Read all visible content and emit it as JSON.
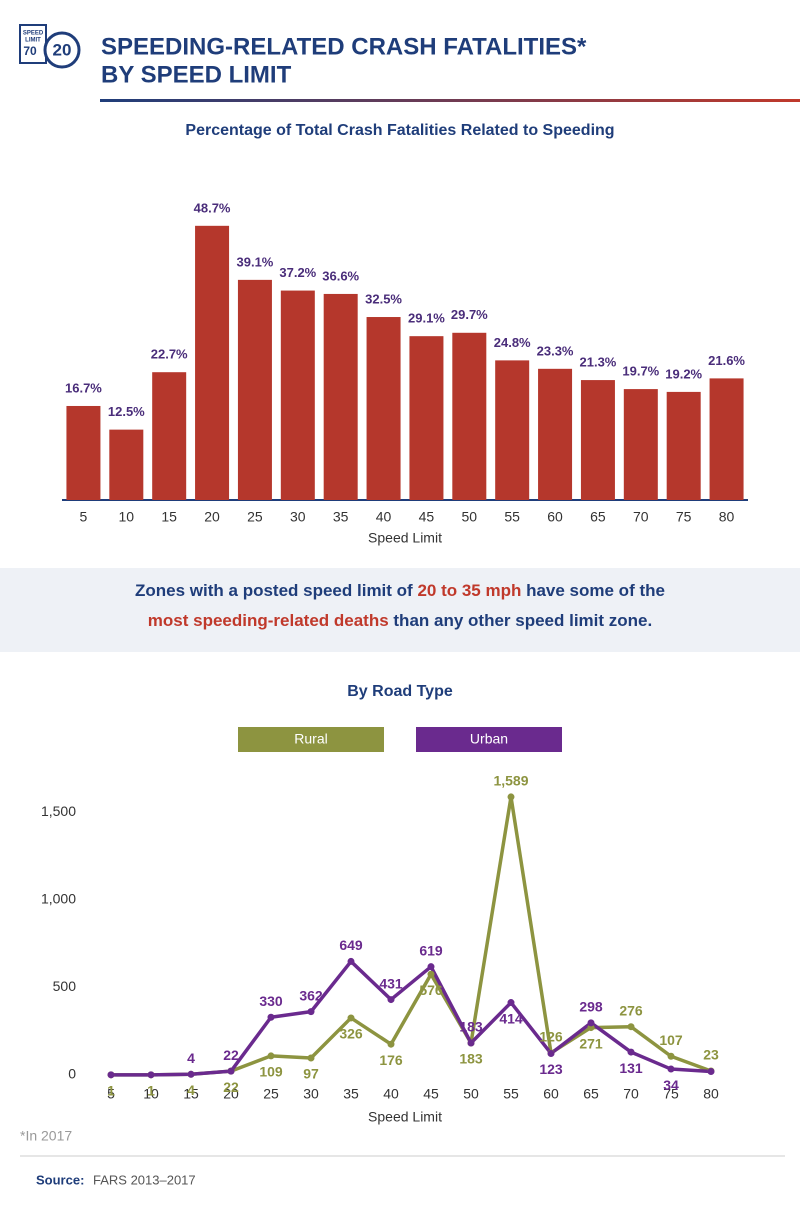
{
  "header": {
    "title": [
      "SPEEDING-RELATED CRASH FATALITIES*",
      "BY SPEED LIMIT"
    ],
    "icon": {
      "sign_top": "SPEED",
      "sign_mid": "LIMIT",
      "sign_value": "70",
      "circle_value": "20"
    }
  },
  "chart_data": [
    {
      "type": "bar",
      "title": "Percentage of Total Crash Fatalities Related to Speeding",
      "categories": [
        "5",
        "10",
        "15",
        "20",
        "25",
        "30",
        "35",
        "40",
        "45",
        "50",
        "55",
        "60",
        "65",
        "70",
        "75",
        "80"
      ],
      "values": [
        16.7,
        12.5,
        22.7,
        48.7,
        39.1,
        37.2,
        36.6,
        32.5,
        29.1,
        29.7,
        24.8,
        23.3,
        21.3,
        19.7,
        19.2,
        21.6
      ],
      "value_labels": [
        "16.7%",
        "12.5%",
        "22.7%",
        "48.7%",
        "39.1%",
        "37.2%",
        "36.6%",
        "32.5%",
        "29.1%",
        "29.7%",
        "24.8%",
        "23.3%",
        "21.3%",
        "19.7%",
        "19.2%",
        "21.6%"
      ],
      "color": "#b5372c",
      "ylim": [
        0,
        50
      ],
      "xlabel": "Speed Limit"
    },
    {
      "type": "line",
      "title": "By Road Type",
      "categories": [
        "5",
        "10",
        "15",
        "20",
        "25",
        "30",
        "35",
        "40",
        "45",
        "50",
        "55",
        "60",
        "65",
        "70",
        "75",
        "80"
      ],
      "series": [
        {
          "name": "Rural",
          "color": "#8d9440",
          "values": [
            1,
            1,
            4,
            22,
            109,
            97,
            326,
            176,
            576,
            183,
            1589,
            126,
            271,
            276,
            107,
            23
          ],
          "value_labels": [
            "1",
            "1",
            "4",
            "22",
            "109",
            "97",
            "326",
            "176",
            "576",
            "183",
            "1,589",
            "126",
            "271",
            "276",
            "107",
            "23"
          ]
        },
        {
          "name": "Urban",
          "color": "#6a2a8e",
          "values": [
            1,
            1,
            4,
            22,
            330,
            362,
            649,
            431,
            619,
            183,
            414,
            123,
            298,
            131,
            34,
            20
          ],
          "value_labels": [
            null,
            null,
            "4",
            "22",
            "330",
            "362",
            "649",
            "431",
            "619",
            "183",
            "414",
            "123",
            "298",
            "131",
            "34",
            null
          ]
        }
      ],
      "ylim": [
        0,
        1600
      ],
      "yticks": [
        0,
        500,
        {
          "value": 1000,
          "label": "1,000"
        },
        {
          "value": 1500,
          "label": "1,500"
        }
      ],
      "xlabel": "Speed Limit",
      "legend": "top"
    }
  ],
  "callout": {
    "lines": [
      [
        {
          "text": "Zones with a posted speed limit of ",
          "emphasis": false
        },
        {
          "text": "20 to 35 mph",
          "emphasis": true
        },
        {
          "text": " have some of the",
          "emphasis": false
        }
      ],
      [
        {
          "text": "most speeding-related deaths",
          "emphasis": true
        },
        {
          "text": " than any other speed limit zone.",
          "emphasis": false
        }
      ]
    ]
  },
  "footnote": "*In 2017",
  "source": {
    "label": "Source:",
    "text": "FARS 2013–2017"
  }
}
